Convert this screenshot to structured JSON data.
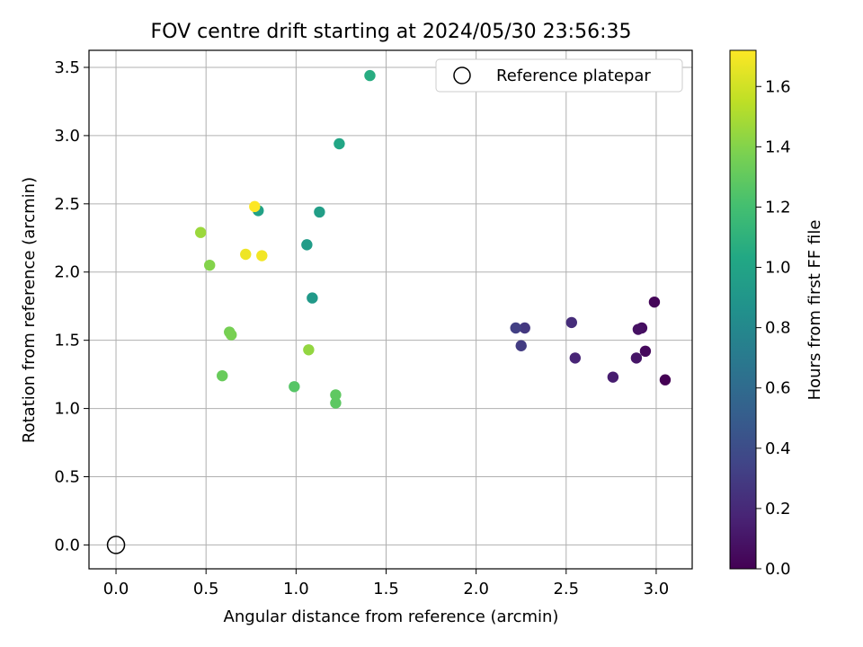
{
  "chart_data": {
    "type": "scatter",
    "title": "FOV centre drift starting at 2024/05/30 23:56:35",
    "xlabel": "Angular distance from reference (arcmin)",
    "ylabel": "Rotation from reference (arcmin)",
    "xlim": [
      -0.15,
      3.2
    ],
    "ylim": [
      -0.175,
      3.625
    ],
    "x_ticks": [
      0.0,
      0.5,
      1.0,
      1.5,
      2.0,
      2.5,
      3.0
    ],
    "x_tick_labels": [
      "0.0",
      "0.5",
      "1.0",
      "1.5",
      "2.0",
      "2.5",
      "3.0"
    ],
    "y_ticks": [
      0.0,
      0.5,
      1.0,
      1.5,
      2.0,
      2.5,
      3.0,
      3.5
    ],
    "y_tick_labels": [
      "0.0",
      "0.5",
      "1.0",
      "1.5",
      "2.0",
      "2.5",
      "3.0",
      "3.5"
    ],
    "grid": true,
    "legend": {
      "position": "upper-right",
      "entries": [
        {
          "label": "Reference platepar",
          "marker": "open-circle"
        }
      ]
    },
    "reference_point": {
      "x": 0.0,
      "y": 0.0
    },
    "colorbar": {
      "label": "Hours from first FF file",
      "colormap": "viridis",
      "range": [
        0.0,
        1.72
      ],
      "ticks": [
        0.0,
        0.2,
        0.4,
        0.6,
        0.8,
        1.0,
        1.2,
        1.4,
        1.6
      ],
      "tick_labels": [
        "0.0",
        "0.2",
        "0.4",
        "0.6",
        "0.8",
        "1.0",
        "1.2",
        "1.4",
        "1.6"
      ]
    },
    "points": [
      {
        "x": 3.05,
        "y": 1.21,
        "c": 0.0
      },
      {
        "x": 2.99,
        "y": 1.78,
        "c": 0.02
      },
      {
        "x": 2.94,
        "y": 1.42,
        "c": 0.04
      },
      {
        "x": 2.92,
        "y": 1.59,
        "c": 0.06
      },
      {
        "x": 2.9,
        "y": 1.58,
        "c": 0.08
      },
      {
        "x": 2.89,
        "y": 1.37,
        "c": 0.1
      },
      {
        "x": 2.76,
        "y": 1.23,
        "c": 0.14
      },
      {
        "x": 2.55,
        "y": 1.37,
        "c": 0.18
      },
      {
        "x": 2.53,
        "y": 1.63,
        "c": 0.22
      },
      {
        "x": 2.27,
        "y": 1.59,
        "c": 0.28
      },
      {
        "x": 2.25,
        "y": 1.46,
        "c": 0.3
      },
      {
        "x": 2.22,
        "y": 1.59,
        "c": 0.32
      },
      {
        "x": 1.09,
        "y": 1.81,
        "c": 0.92
      },
      {
        "x": 1.06,
        "y": 2.2,
        "c": 0.94
      },
      {
        "x": 1.13,
        "y": 2.44,
        "c": 0.96
      },
      {
        "x": 0.79,
        "y": 2.45,
        "c": 0.98
      },
      {
        "x": 1.24,
        "y": 2.94,
        "c": 1.02
      },
      {
        "x": 1.41,
        "y": 3.44,
        "c": 1.06
      },
      {
        "x": 0.99,
        "y": 1.16,
        "c": 1.26
      },
      {
        "x": 1.22,
        "y": 1.04,
        "c": 1.28
      },
      {
        "x": 1.22,
        "y": 1.1,
        "c": 1.29
      },
      {
        "x": 0.59,
        "y": 1.24,
        "c": 1.32
      },
      {
        "x": 0.63,
        "y": 1.56,
        "c": 1.36
      },
      {
        "x": 0.64,
        "y": 1.54,
        "c": 1.37
      },
      {
        "x": 0.52,
        "y": 2.05,
        "c": 1.4
      },
      {
        "x": 1.07,
        "y": 1.43,
        "c": 1.44
      },
      {
        "x": 0.47,
        "y": 2.29,
        "c": 1.46
      },
      {
        "x": 0.72,
        "y": 2.13,
        "c": 1.68
      },
      {
        "x": 0.81,
        "y": 2.12,
        "c": 1.69
      },
      {
        "x": 0.77,
        "y": 2.48,
        "c": 1.72
      }
    ]
  }
}
